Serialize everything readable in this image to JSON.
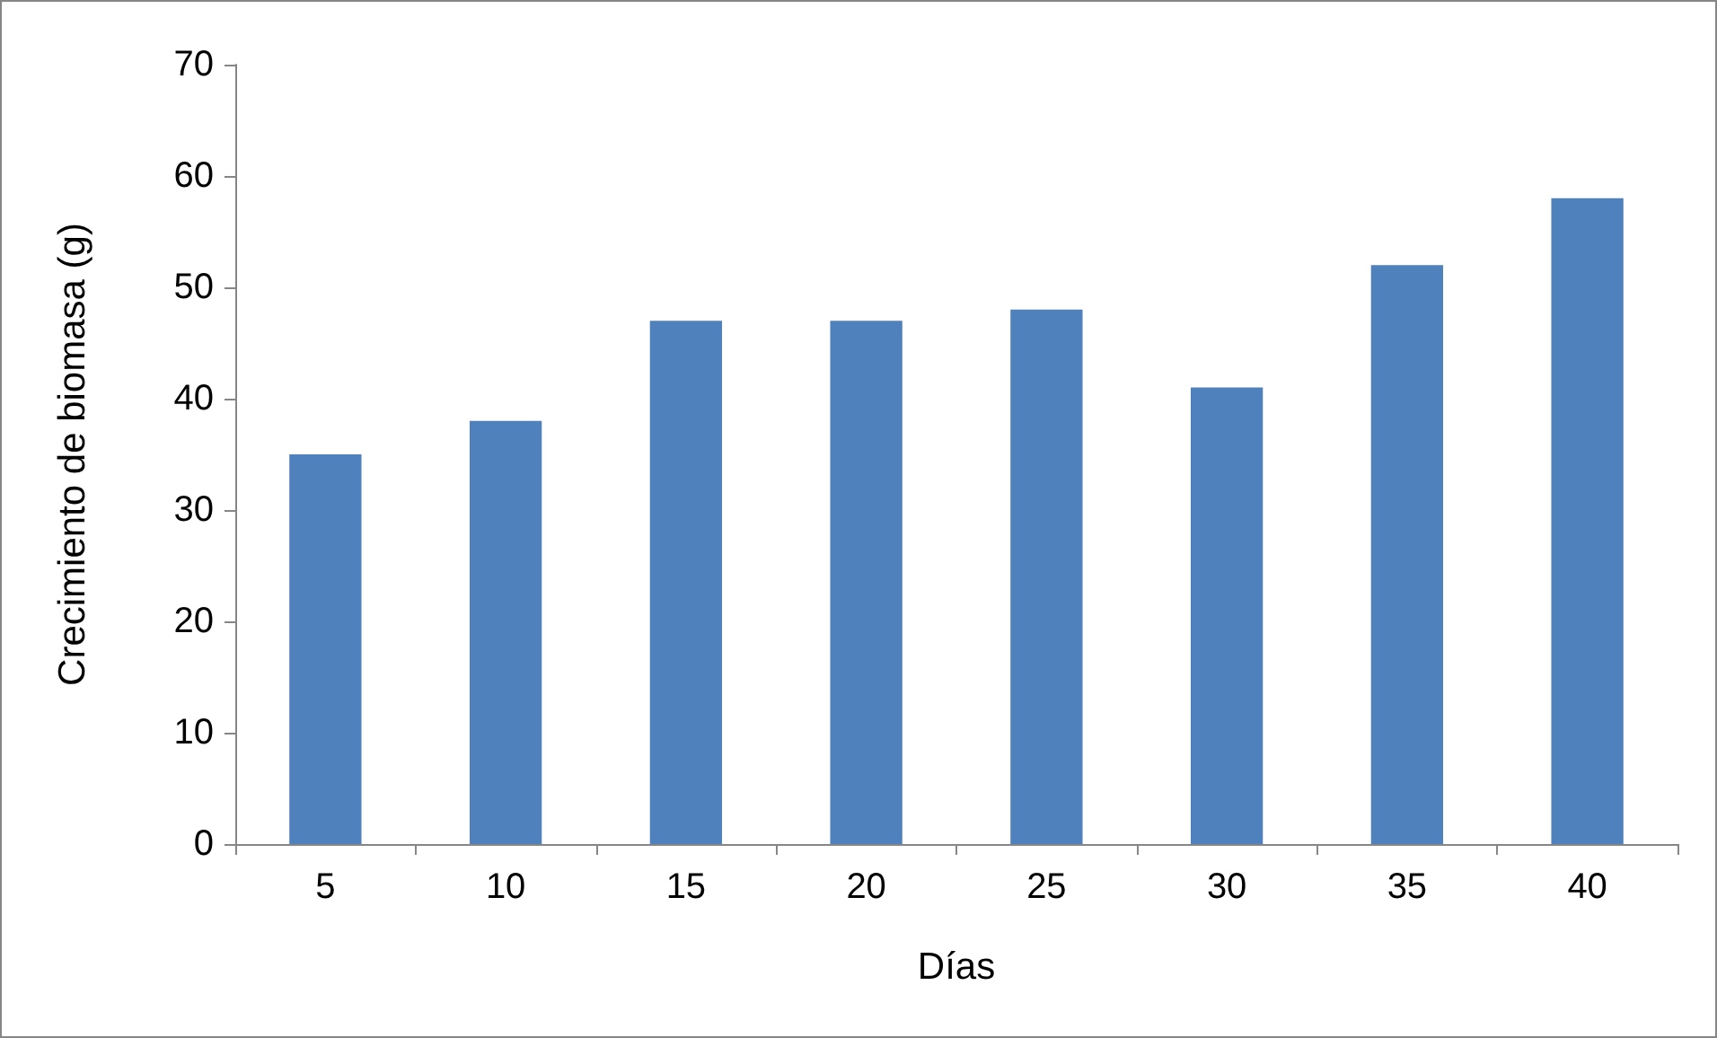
{
  "chart_data": {
    "type": "bar",
    "xlabel": "Días",
    "ylabel": "Crecimiento de biomasa (g)",
    "categories": [
      "5",
      "10",
      "15",
      "20",
      "25",
      "30",
      "35",
      "40"
    ],
    "values": [
      35,
      38,
      47,
      47,
      48,
      41,
      52,
      58
    ],
    "color": "#4f81bd",
    "ylim": [
      0,
      70
    ],
    "yticks": [
      0,
      10,
      20,
      30,
      40,
      50,
      60,
      70
    ],
    "grid": false
  }
}
